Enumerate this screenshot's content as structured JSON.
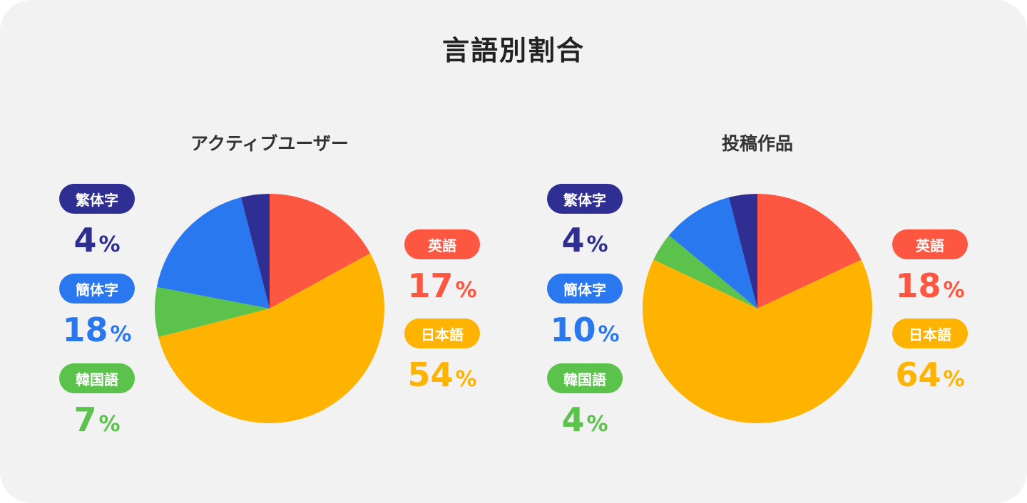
{
  "title": "言語別割合",
  "colors": {
    "英語": "#fd5641",
    "日本語": "#fdb300",
    "韓国語": "#5bc34b",
    "簡体字": "#2a78ef",
    "繁体字": "#2e2e93"
  },
  "unit": "%",
  "chart_data": [
    {
      "type": "pie",
      "title": "アクティブユーザー",
      "slices": [
        {
          "label": "英語",
          "value": 17
        },
        {
          "label": "日本語",
          "value": 54
        },
        {
          "label": "韓国語",
          "value": 7
        },
        {
          "label": "簡体字",
          "value": 18
        },
        {
          "label": "繁体字",
          "value": 4
        }
      ]
    },
    {
      "type": "pie",
      "title": "投稿作品",
      "slices": [
        {
          "label": "英語",
          "value": 18
        },
        {
          "label": "日本語",
          "value": 64
        },
        {
          "label": "韓国語",
          "value": 4
        },
        {
          "label": "簡体字",
          "value": 10
        },
        {
          "label": "繁体字",
          "value": 4
        }
      ]
    }
  ]
}
